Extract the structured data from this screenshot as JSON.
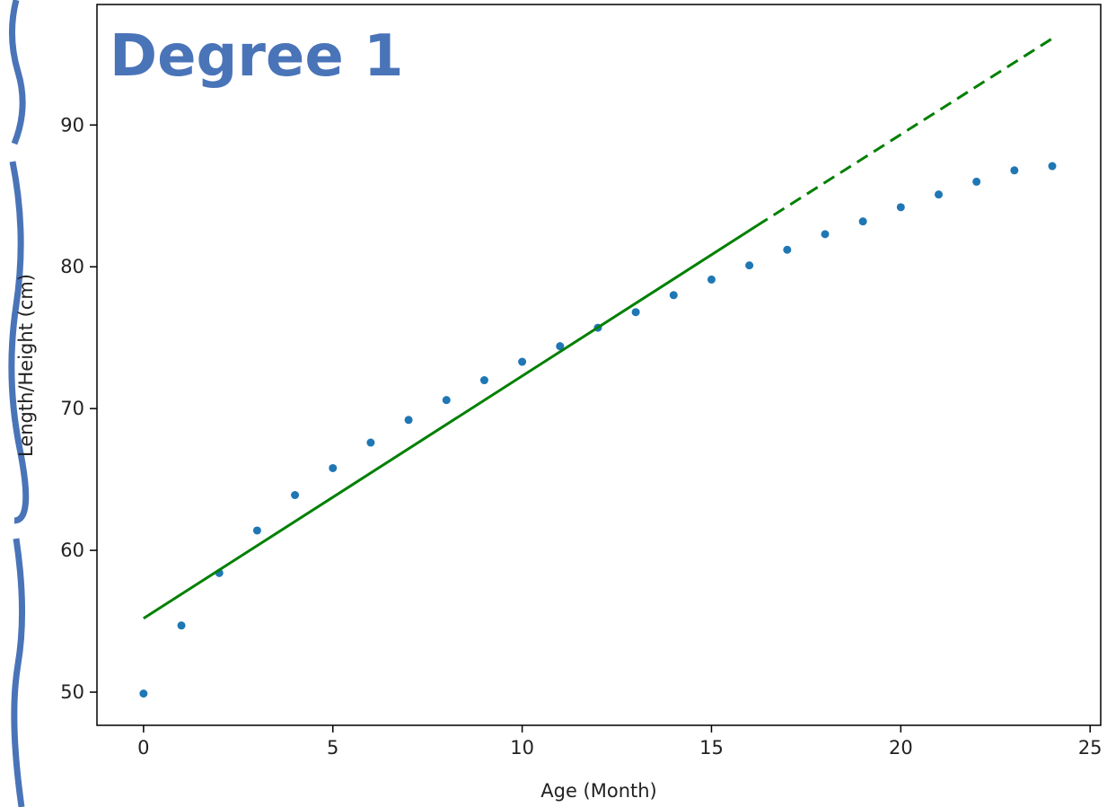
{
  "chart_data": {
    "type": "scatter",
    "annotation": "Degree 1",
    "xlabel": "Age (Month)",
    "ylabel": "Length/Height (cm)",
    "xlim": [
      -1.23,
      25.28
    ],
    "ylim": [
      47.66,
      98.5
    ],
    "xticks": [
      0,
      5,
      10,
      15,
      20,
      25
    ],
    "yticks": [
      50,
      60,
      70,
      80,
      90
    ],
    "series": [
      {
        "type": "scatter",
        "color": "#1f77b4",
        "x": [
          0,
          1,
          2,
          3,
          4,
          5,
          6,
          7,
          8,
          9,
          10,
          11,
          12,
          13,
          14,
          15,
          16,
          17,
          18,
          19,
          20,
          21,
          22,
          23,
          24
        ],
        "values": [
          49.9,
          54.7,
          58.4,
          61.4,
          63.9,
          65.8,
          67.6,
          69.2,
          70.6,
          72.0,
          73.3,
          74.4,
          75.7,
          76.8,
          78.0,
          79.1,
          80.1,
          81.2,
          82.3,
          83.2,
          84.2,
          85.1,
          86.0,
          86.8,
          87.1
        ]
      },
      {
        "type": "line",
        "color": "#008000",
        "linestyle": "solid",
        "x": [
          0,
          16.2
        ],
        "values": [
          55.2,
          82.9
        ]
      },
      {
        "type": "line",
        "color": "#008000",
        "linestyle": "dashed",
        "x": [
          16.2,
          24
        ],
        "values": [
          82.9,
          96.1
        ]
      }
    ]
  }
}
